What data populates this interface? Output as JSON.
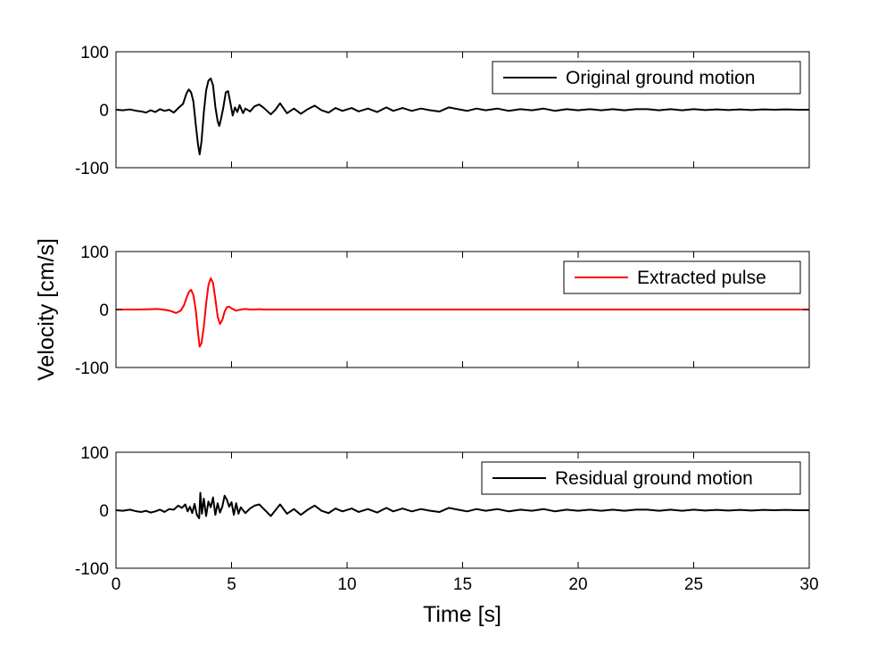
{
  "figure": {
    "xlabel": "Time [s]",
    "ylabel": "Velocity [cm/s]"
  },
  "chart_data": [
    {
      "type": "line",
      "xlim": [
        0,
        30
      ],
      "ylim": [
        -100,
        100
      ],
      "xticks": [
        0,
        5,
        10,
        15,
        20,
        25,
        30
      ],
      "yticks": [
        -100,
        0,
        100
      ],
      "show_x_tick_labels": false,
      "legend_position": "top-right",
      "grid": false,
      "series": [
        {
          "name": "Original ground motion",
          "color": "#000000",
          "points": [
            [
              0,
              0
            ],
            [
              0.3,
              -1
            ],
            [
              0.6,
              0.5
            ],
            [
              0.9,
              -2
            ],
            [
              1.1,
              -3
            ],
            [
              1.3,
              -5
            ],
            [
              1.5,
              -1
            ],
            [
              1.7,
              -4
            ],
            [
              1.9,
              1
            ],
            [
              2.1,
              -2
            ],
            [
              2.3,
              0
            ],
            [
              2.5,
              -5
            ],
            [
              2.7,
              3
            ],
            [
              2.9,
              10
            ],
            [
              3.05,
              28
            ],
            [
              3.15,
              35
            ],
            [
              3.25,
              30
            ],
            [
              3.35,
              14
            ],
            [
              3.45,
              -25
            ],
            [
              3.55,
              -60
            ],
            [
              3.62,
              -77
            ],
            [
              3.7,
              -55
            ],
            [
              3.8,
              -5
            ],
            [
              3.9,
              33
            ],
            [
              4.0,
              50
            ],
            [
              4.1,
              54
            ],
            [
              4.2,
              42
            ],
            [
              4.3,
              5
            ],
            [
              4.4,
              -20
            ],
            [
              4.47,
              -28
            ],
            [
              4.55,
              -15
            ],
            [
              4.65,
              5
            ],
            [
              4.75,
              30
            ],
            [
              4.85,
              32
            ],
            [
              4.95,
              12
            ],
            [
              5.05,
              -10
            ],
            [
              5.15,
              4
            ],
            [
              5.25,
              -4
            ],
            [
              5.35,
              8
            ],
            [
              5.5,
              -6
            ],
            [
              5.6,
              2
            ],
            [
              5.8,
              -3
            ],
            [
              6.0,
              6
            ],
            [
              6.2,
              9
            ],
            [
              6.4,
              3
            ],
            [
              6.7,
              -8
            ],
            [
              6.9,
              0
            ],
            [
              7.1,
              11
            ],
            [
              7.4,
              -6
            ],
            [
              7.7,
              2
            ],
            [
              8.0,
              -7
            ],
            [
              8.3,
              1
            ],
            [
              8.6,
              7
            ],
            [
              8.9,
              -1
            ],
            [
              9.2,
              -5
            ],
            [
              9.5,
              3
            ],
            [
              9.8,
              -2
            ],
            [
              10.2,
              3
            ],
            [
              10.5,
              -3
            ],
            [
              10.9,
              2
            ],
            [
              11.3,
              -4
            ],
            [
              11.7,
              4
            ],
            [
              12.0,
              -2
            ],
            [
              12.4,
              3
            ],
            [
              12.8,
              -2
            ],
            [
              13.2,
              2
            ],
            [
              13.6,
              -1
            ],
            [
              14.0,
              -3
            ],
            [
              14.4,
              4
            ],
            [
              14.8,
              1
            ],
            [
              15.2,
              -2
            ],
            [
              15.6,
              2
            ],
            [
              16.0,
              -1
            ],
            [
              16.5,
              2
            ],
            [
              17.0,
              -2
            ],
            [
              17.5,
              1
            ],
            [
              18.0,
              -1
            ],
            [
              18.5,
              2
            ],
            [
              19.0,
              -2
            ],
            [
              19.5,
              1
            ],
            [
              20.0,
              -1
            ],
            [
              20.5,
              1
            ],
            [
              21.0,
              -1
            ],
            [
              21.5,
              1
            ],
            [
              22.0,
              -1
            ],
            [
              22.5,
              1
            ],
            [
              23.0,
              1
            ],
            [
              23.5,
              -1
            ],
            [
              24.0,
              1
            ],
            [
              24.5,
              -1
            ],
            [
              25.0,
              1
            ],
            [
              25.5,
              -0.5
            ],
            [
              26.0,
              0.5
            ],
            [
              26.5,
              -0.5
            ],
            [
              27.0,
              0.5
            ],
            [
              27.5,
              -0.5
            ],
            [
              28.0,
              0.5
            ],
            [
              28.5,
              0
            ],
            [
              29.0,
              0.5
            ],
            [
              29.5,
              0
            ],
            [
              30.0,
              0
            ]
          ]
        }
      ]
    },
    {
      "type": "line",
      "xlim": [
        0,
        30
      ],
      "ylim": [
        -100,
        100
      ],
      "xticks": [
        0,
        5,
        10,
        15,
        20,
        25,
        30
      ],
      "yticks": [
        -100,
        0,
        100
      ],
      "show_x_tick_labels": false,
      "legend_position": "top-right",
      "grid": false,
      "series": [
        {
          "name": "Extracted pulse",
          "color": "#ff0000",
          "points": [
            [
              0,
              0
            ],
            [
              1.0,
              0
            ],
            [
              1.5,
              0.5
            ],
            [
              1.8,
              1
            ],
            [
              2.0,
              0
            ],
            [
              2.2,
              -1
            ],
            [
              2.4,
              -3
            ],
            [
              2.6,
              -6
            ],
            [
              2.8,
              -2
            ],
            [
              2.95,
              8
            ],
            [
              3.05,
              20
            ],
            [
              3.15,
              30
            ],
            [
              3.25,
              34
            ],
            [
              3.35,
              25
            ],
            [
              3.45,
              0
            ],
            [
              3.55,
              -40
            ],
            [
              3.62,
              -64
            ],
            [
              3.7,
              -58
            ],
            [
              3.8,
              -30
            ],
            [
              3.9,
              10
            ],
            [
              4.0,
              42
            ],
            [
              4.1,
              54
            ],
            [
              4.2,
              46
            ],
            [
              4.3,
              18
            ],
            [
              4.4,
              -12
            ],
            [
              4.5,
              -25
            ],
            [
              4.6,
              -18
            ],
            [
              4.7,
              -4
            ],
            [
              4.8,
              4
            ],
            [
              4.9,
              5
            ],
            [
              5.0,
              2
            ],
            [
              5.2,
              -2
            ],
            [
              5.4,
              0
            ],
            [
              5.6,
              1
            ],
            [
              5.8,
              0
            ],
            [
              6.0,
              0
            ],
            [
              6.2,
              0.5
            ],
            [
              6.4,
              0
            ],
            [
              30.0,
              0
            ]
          ]
        }
      ]
    },
    {
      "type": "line",
      "xlim": [
        0,
        30
      ],
      "ylim": [
        -100,
        100
      ],
      "xticks": [
        0,
        5,
        10,
        15,
        20,
        25,
        30
      ],
      "yticks": [
        -100,
        0,
        100
      ],
      "show_x_tick_labels": true,
      "legend_position": "top-right",
      "grid": false,
      "series": [
        {
          "name": "Residual ground motion",
          "color": "#000000",
          "points": [
            [
              0,
              0
            ],
            [
              0.3,
              -1
            ],
            [
              0.6,
              1
            ],
            [
              0.9,
              -2
            ],
            [
              1.1,
              -3
            ],
            [
              1.3,
              -1
            ],
            [
              1.5,
              -4
            ],
            [
              1.7,
              -2
            ],
            [
              1.9,
              1
            ],
            [
              2.1,
              -3
            ],
            [
              2.3,
              2
            ],
            [
              2.5,
              1
            ],
            [
              2.7,
              8
            ],
            [
              2.85,
              4
            ],
            [
              3.0,
              10
            ],
            [
              3.1,
              -2
            ],
            [
              3.2,
              6
            ],
            [
              3.3,
              -5
            ],
            [
              3.4,
              11
            ],
            [
              3.5,
              -8
            ],
            [
              3.6,
              -14
            ],
            [
              3.65,
              30
            ],
            [
              3.72,
              -6
            ],
            [
              3.8,
              20
            ],
            [
              3.9,
              -10
            ],
            [
              4.0,
              15
            ],
            [
              4.1,
              5
            ],
            [
              4.2,
              22
            ],
            [
              4.3,
              -8
            ],
            [
              4.4,
              12
            ],
            [
              4.5,
              -4
            ],
            [
              4.6,
              6
            ],
            [
              4.7,
              25
            ],
            [
              4.8,
              18
            ],
            [
              4.9,
              6
            ],
            [
              5.0,
              14
            ],
            [
              5.1,
              -8
            ],
            [
              5.2,
              12
            ],
            [
              5.3,
              -6
            ],
            [
              5.4,
              5
            ],
            [
              5.6,
              -5
            ],
            [
              5.8,
              3
            ],
            [
              6.0,
              8
            ],
            [
              6.2,
              10
            ],
            [
              6.4,
              2
            ],
            [
              6.7,
              -10
            ],
            [
              6.9,
              0
            ],
            [
              7.1,
              10
            ],
            [
              7.4,
              -6
            ],
            [
              7.7,
              2
            ],
            [
              8.0,
              -8
            ],
            [
              8.3,
              1
            ],
            [
              8.6,
              8
            ],
            [
              8.9,
              -1
            ],
            [
              9.2,
              -5
            ],
            [
              9.5,
              3
            ],
            [
              9.8,
              -2
            ],
            [
              10.2,
              3
            ],
            [
              10.5,
              -3
            ],
            [
              10.9,
              2
            ],
            [
              11.3,
              -4
            ],
            [
              11.7,
              4
            ],
            [
              12.0,
              -2
            ],
            [
              12.4,
              3
            ],
            [
              12.8,
              -2
            ],
            [
              13.2,
              2
            ],
            [
              13.6,
              -1
            ],
            [
              14.0,
              -3
            ],
            [
              14.4,
              4
            ],
            [
              14.8,
              1
            ],
            [
              15.2,
              -2
            ],
            [
              15.6,
              2
            ],
            [
              16.0,
              -1
            ],
            [
              16.5,
              2
            ],
            [
              17.0,
              -2
            ],
            [
              17.5,
              1
            ],
            [
              18.0,
              -1
            ],
            [
              18.5,
              2
            ],
            [
              19.0,
              -2
            ],
            [
              19.5,
              1
            ],
            [
              20.0,
              -1
            ],
            [
              20.5,
              1
            ],
            [
              21.0,
              -1
            ],
            [
              21.5,
              1
            ],
            [
              22.0,
              -1
            ],
            [
              22.5,
              1
            ],
            [
              23.0,
              1
            ],
            [
              23.5,
              -1
            ],
            [
              24.0,
              1
            ],
            [
              24.5,
              -1
            ],
            [
              25.0,
              1
            ],
            [
              25.5,
              -0.5
            ],
            [
              26.0,
              0.5
            ],
            [
              26.5,
              -0.5
            ],
            [
              27.0,
              0.5
            ],
            [
              27.5,
              -0.5
            ],
            [
              28.0,
              0.5
            ],
            [
              28.5,
              0
            ],
            [
              29.0,
              0.5
            ],
            [
              29.5,
              0
            ],
            [
              30.0,
              0
            ]
          ]
        }
      ]
    }
  ]
}
